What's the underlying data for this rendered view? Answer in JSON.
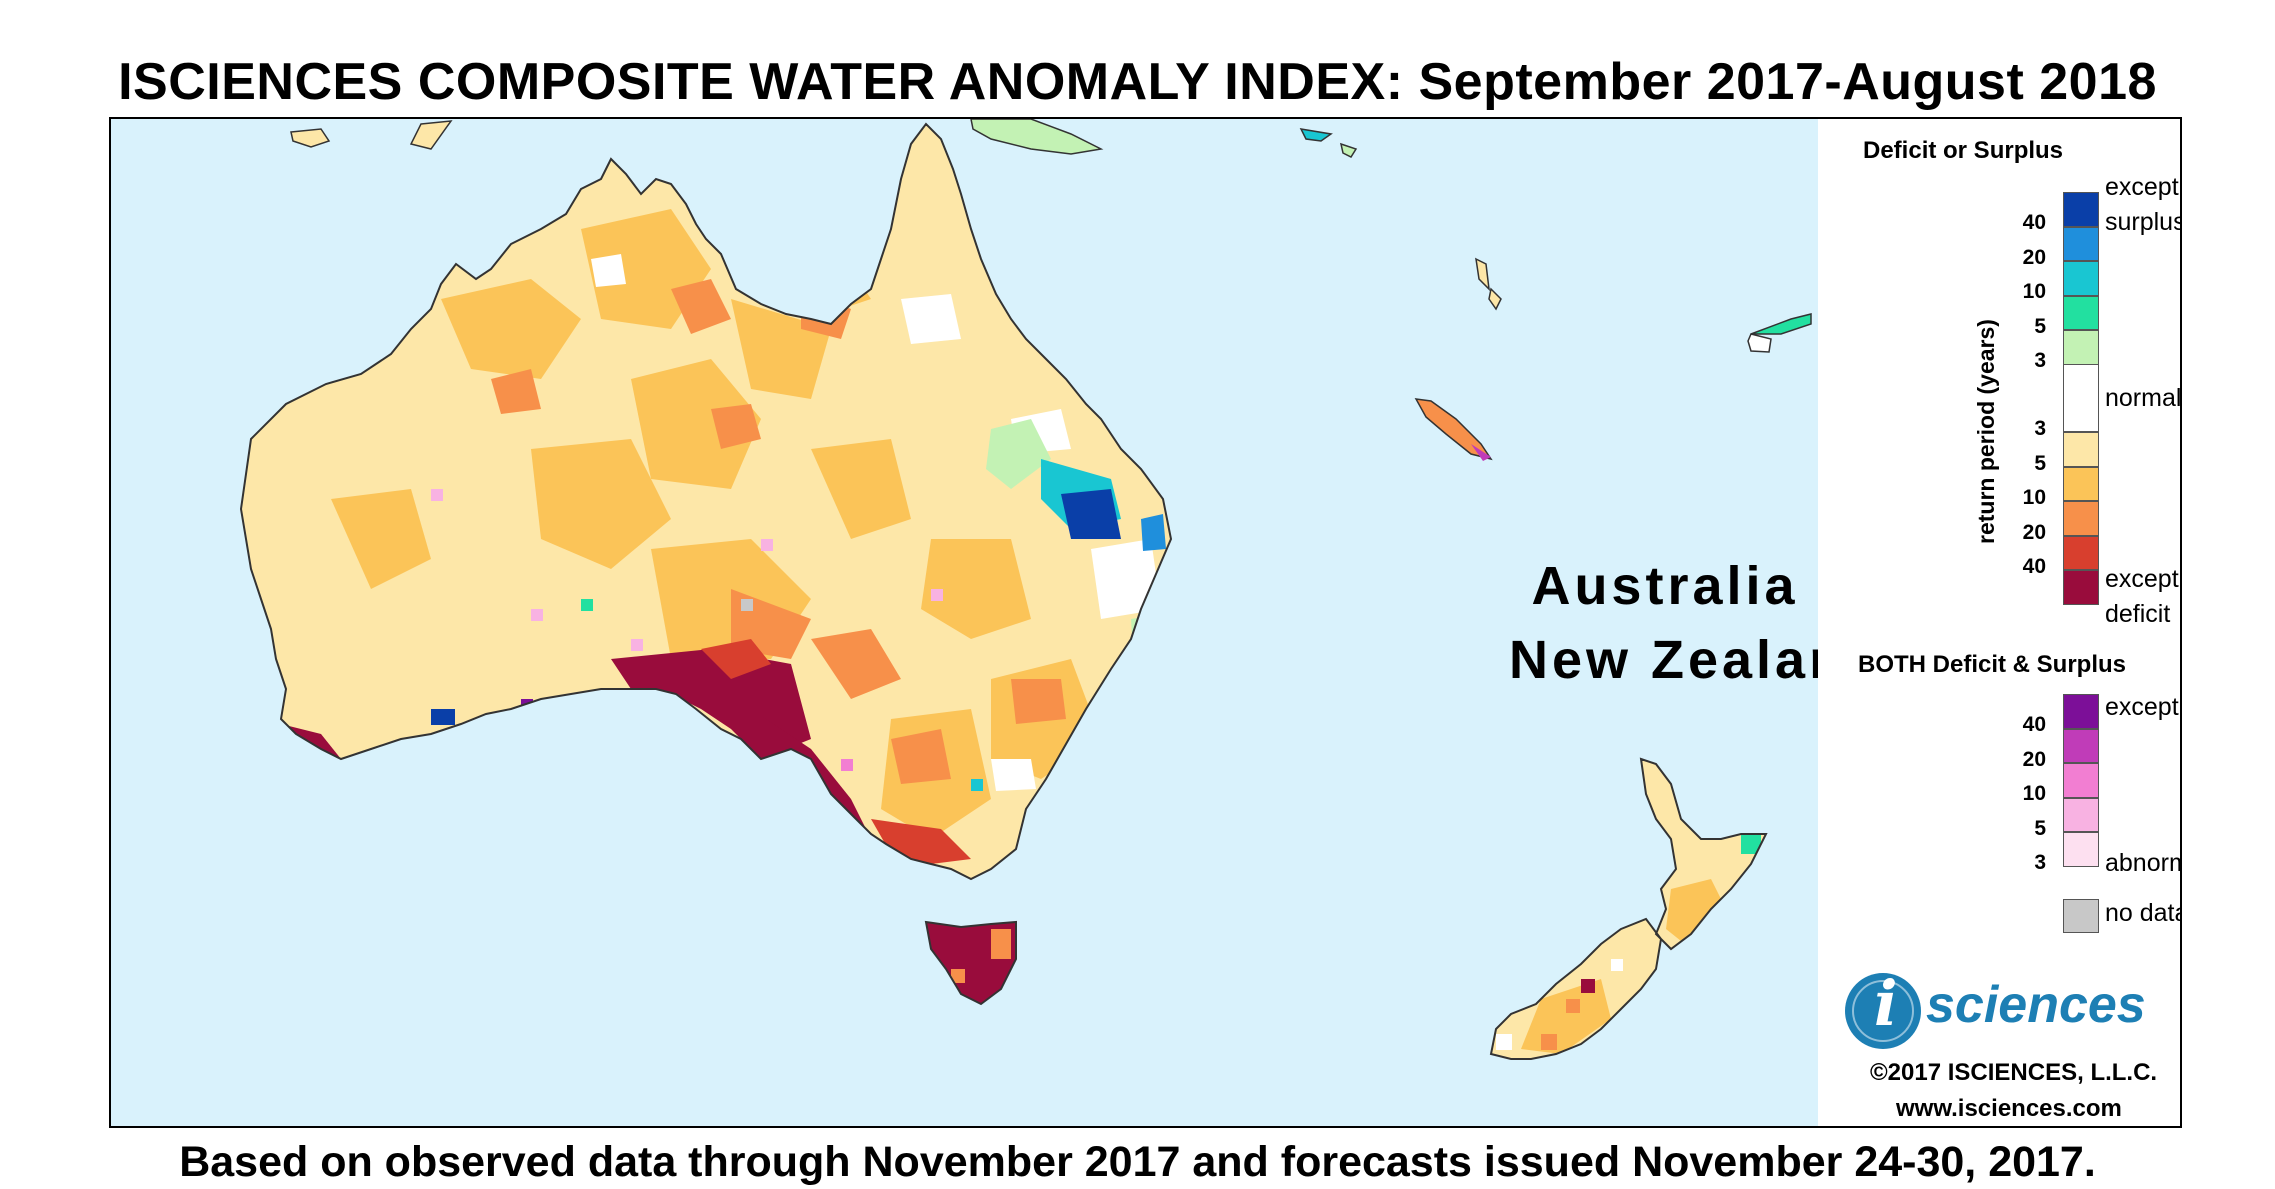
{
  "title": "ISCIENCES COMPOSITE WATER ANOMALY INDEX: September 2017-August 2018",
  "footer": "Based on observed data through November 2017 and forecasts issued November 24-30, 2017.",
  "map": {
    "region_label_line1": "Australia &",
    "region_label_line2": "New Zealand",
    "ocean_color": "#d9f2fc"
  },
  "legend": {
    "deficit_surplus_heading": "Deficit or Surplus",
    "axis_label": "return period (years)",
    "surplus_label_1": "exceptional",
    "surplus_label_2": "surplus",
    "normal_label": "normal",
    "deficit_label_1": "exceptional",
    "deficit_label_2": "deficit",
    "surplus_ticks": [
      "40",
      "20",
      "10",
      "5",
      "3"
    ],
    "deficit_ticks": [
      "3",
      "5",
      "10",
      "20",
      "40"
    ],
    "surplus_colors": [
      "#0a3fa8",
      "#1f8fdc",
      "#19c6d2",
      "#22e0a0",
      "#c3f2b4"
    ],
    "normal_color": "#ffffff",
    "deficit_colors": [
      "#fde7a8",
      "#fbc458",
      "#f7904a",
      "#d83f2e",
      "#990c3c"
    ],
    "both_heading": "BOTH Deficit & Surplus",
    "both_label_top": "exceptional",
    "both_label_bottom": "abnormal",
    "both_ticks": [
      "40",
      "20",
      "10",
      "5",
      "3"
    ],
    "both_colors": [
      "#7c0f98",
      "#c03cb8",
      "#f27ed2",
      "#f8b2e2",
      "#fde0f0"
    ],
    "no_data_label": "no data",
    "no_data_color": "#c8c8c8"
  },
  "branding": {
    "logo_letter": "i",
    "logo_word": "sciences",
    "copyright": "©2017 ISCIENCES, L.L.C.",
    "website": "www.isciences.com",
    "logo_color": "#1d7fb4"
  }
}
